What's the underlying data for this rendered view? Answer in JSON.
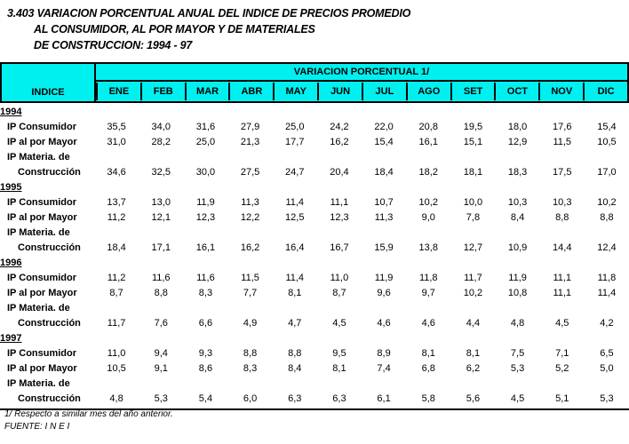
{
  "title": {
    "line1": "3.403 VARIACION PORCENTUAL ANUAL DEL INDICE DE PRECIOS PROMEDIO",
    "line2": "AL CONSUMIDOR, AL POR MAYOR Y DE  MATERIALES",
    "line3": "DE CONSTRUCCION: 1994 - 97"
  },
  "colors": {
    "header_bg": "#00F0F0",
    "border": "#000000"
  },
  "table": {
    "corner_header": "INDICE",
    "group_header": "VARIACION PORCENTUAL  1/",
    "months": [
      "ENE",
      "FEB",
      "MAR",
      "ABR",
      "MAY",
      "JUN",
      "JUL",
      "AGO",
      "SET",
      "OCT",
      "NOV",
      "DIC"
    ],
    "years": [
      {
        "year": "1994",
        "rows": [
          {
            "label": "IP Consumidor",
            "values": [
              "35,5",
              "34,0",
              "31,6",
              "27,9",
              "25,0",
              "24,2",
              "22,0",
              "20,8",
              "19,5",
              "18,0",
              "17,6",
              "15,4"
            ]
          },
          {
            "label": "IP al por Mayor",
            "values": [
              "31,0",
              "28,2",
              "25,0",
              "21,3",
              "17,7",
              "16,2",
              "15,4",
              "16,1",
              "15,1",
              "12,9",
              "11,5",
              "10,5"
            ]
          },
          {
            "label": "IP Materia. de",
            "values": []
          },
          {
            "label": "Construcción",
            "indent": true,
            "values": [
              "34,6",
              "32,5",
              "30,0",
              "27,5",
              "24,7",
              "20,4",
              "18,4",
              "18,2",
              "18,1",
              "18,3",
              "17,5",
              "17,0"
            ]
          }
        ]
      },
      {
        "year": "1995",
        "rows": [
          {
            "label": "IP Consumidor",
            "values": [
              "13,7",
              "13,0",
              "11,9",
              "11,3",
              "11,4",
              "11,1",
              "10,7",
              "10,2",
              "10,0",
              "10,3",
              "10,3",
              "10,2"
            ]
          },
          {
            "label": "IP al por Mayor",
            "values": [
              "11,2",
              "12,1",
              "12,3",
              "12,2",
              "12,5",
              "12,3",
              "11,3",
              "9,0",
              "7,8",
              "8,4",
              "8,8",
              "8,8"
            ]
          },
          {
            "label": "IP Materia. de",
            "values": []
          },
          {
            "label": "Construcción",
            "indent": true,
            "values": [
              "18,4",
              "17,1",
              "16,1",
              "16,2",
              "16,4",
              "16,7",
              "15,9",
              "13,8",
              "12,7",
              "10,9",
              "14,4",
              "12,4"
            ]
          }
        ]
      },
      {
        "year": "1996",
        "rows": [
          {
            "label": "IP Consumidor",
            "values": [
              "11,2",
              "11,6",
              "11,6",
              "11,5",
              "11,4",
              "11,0",
              "11,9",
              "11,8",
              "11,7",
              "11,9",
              "11,1",
              "11,8"
            ]
          },
          {
            "label": "IP al por Mayor",
            "values": [
              "8,7",
              "8,8",
              "8,3",
              "7,7",
              "8,1",
              "8,7",
              "9,6",
              "9,7",
              "10,2",
              "10,8",
              "11,1",
              "11,4"
            ]
          },
          {
            "label": "IP Materia. de",
            "values": []
          },
          {
            "label": "Construcción",
            "indent": true,
            "values": [
              "11,7",
              "7,6",
              "6,6",
              "4,9",
              "4,7",
              "4,5",
              "4,6",
              "4,6",
              "4,4",
              "4,8",
              "4,5",
              "4,2"
            ]
          }
        ]
      },
      {
        "year": "1997",
        "rows": [
          {
            "label": "IP Consumidor",
            "values": [
              "11,0",
              "9,4",
              "9,3",
              "8,8",
              "8,8",
              "9,5",
              "8,9",
              "8,1",
              "8,1",
              "7,5",
              "7,1",
              "6,5"
            ]
          },
          {
            "label": "IP al por Mayor",
            "values": [
              "10,5",
              "9,1",
              "8,6",
              "8,3",
              "8,4",
              "8,1",
              "7,4",
              "6,8",
              "6,2",
              "5,3",
              "5,2",
              "5,0"
            ]
          },
          {
            "label": "IP Materia. de",
            "values": []
          },
          {
            "label": "Construcción",
            "indent": true,
            "values": [
              "4,8",
              "5,3",
              "5,4",
              "6,0",
              "6,3",
              "6,3",
              "6,1",
              "5,8",
              "5,6",
              "4,5",
              "5,1",
              "5,3"
            ]
          }
        ]
      }
    ]
  },
  "footnotes": {
    "note": "1/ Respecto a similar mes del año anterior.",
    "source": "FUENTE: I N E I"
  }
}
